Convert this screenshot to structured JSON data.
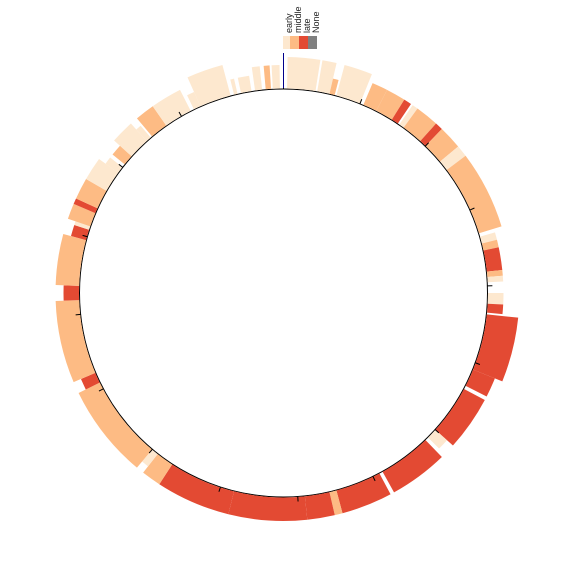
{
  "legend": {
    "entries": [
      {
        "label": "early",
        "color": "#fde8cf"
      },
      {
        "label": "middle",
        "color": "#fdbb84"
      },
      {
        "label": "late",
        "color": "#e34a33"
      },
      {
        "label": "None",
        "color": "#808080"
      }
    ]
  },
  "colors": {
    "early": "#fde8cf",
    "middle": "#fdbb84",
    "late": "#e34a33",
    "axis": "#000000",
    "origin_marker": "#00008b"
  },
  "chart_data": {
    "type": "circular-track",
    "angle_unit": "degrees_clockwise_from_top",
    "ticks_deg": [
      0,
      22,
      44,
      66,
      88,
      110,
      132,
      154,
      176,
      198,
      220,
      242,
      264,
      286,
      308,
      330
    ],
    "segments": [
      {
        "start": 1,
        "end": 9,
        "cls": "early",
        "level": "long"
      },
      {
        "start": 9.5,
        "end": 13,
        "cls": "early",
        "level": "long"
      },
      {
        "start": 13,
        "end": 14.5,
        "cls": "middle",
        "level": "short"
      },
      {
        "start": 15,
        "end": 22,
        "cls": "early",
        "level": "long"
      },
      {
        "start": 23,
        "end": 27,
        "cls": "middle",
        "level": "mid"
      },
      {
        "start": 27,
        "end": 32,
        "cls": "middle",
        "level": "mid"
      },
      {
        "start": 32,
        "end": 34,
        "cls": "late",
        "level": "mid"
      },
      {
        "start": 34.5,
        "end": 36,
        "cls": "early",
        "level": "mid"
      },
      {
        "start": 36,
        "end": 42,
        "cls": "middle",
        "level": "mid"
      },
      {
        "start": 42,
        "end": 44,
        "cls": "late",
        "level": "mid"
      },
      {
        "start": 44,
        "end": 50,
        "cls": "middle",
        "level": "mid"
      },
      {
        "start": 50,
        "end": 53,
        "cls": "early",
        "level": "mid"
      },
      {
        "start": 53,
        "end": 73,
        "cls": "middle",
        "level": "mid"
      },
      {
        "start": 74,
        "end": 76,
        "cls": "early",
        "level": "short"
      },
      {
        "start": 76,
        "end": 78,
        "cls": "middle",
        "level": "short"
      },
      {
        "start": 78,
        "end": 84,
        "cls": "late",
        "level": "short"
      },
      {
        "start": 84,
        "end": 85.5,
        "cls": "middle",
        "level": "short"
      },
      {
        "start": 85.5,
        "end": 87,
        "cls": "early",
        "level": "short"
      },
      {
        "start": 90,
        "end": 93,
        "cls": "early",
        "level": "short"
      },
      {
        "start": 93,
        "end": 95.5,
        "cls": "late",
        "level": "short"
      },
      {
        "start": 96,
        "end": 112,
        "cls": "late",
        "level": "long"
      },
      {
        "start": 112,
        "end": 117,
        "cls": "late",
        "level": "mid"
      },
      {
        "start": 118,
        "end": 132,
        "cls": "late",
        "level": "mid"
      },
      {
        "start": 132,
        "end": 135,
        "cls": "early",
        "level": "short"
      },
      {
        "start": 136,
        "end": 151,
        "cls": "late",
        "level": "mid"
      },
      {
        "start": 152,
        "end": 165,
        "cls": "late",
        "level": "mid"
      },
      {
        "start": 165,
        "end": 167,
        "cls": "middle",
        "level": "mid"
      },
      {
        "start": 167,
        "end": 174,
        "cls": "late",
        "level": "mid"
      },
      {
        "start": 174,
        "end": 194,
        "cls": "late",
        "level": "mid"
      },
      {
        "start": 194,
        "end": 213,
        "cls": "late",
        "level": "mid"
      },
      {
        "start": 213,
        "end": 218,
        "cls": "middle",
        "level": "mid"
      },
      {
        "start": 218,
        "end": 220,
        "cls": "early",
        "level": "short"
      },
      {
        "start": 220,
        "end": 244,
        "cls": "middle",
        "level": "mid"
      },
      {
        "start": 244,
        "end": 247,
        "cls": "late",
        "level": "short"
      },
      {
        "start": 247,
        "end": 268,
        "cls": "middle",
        "level": "mid"
      },
      {
        "start": 268,
        "end": 272,
        "cls": "late",
        "level": "short"
      },
      {
        "start": 272,
        "end": 285,
        "cls": "middle",
        "level": "mid"
      },
      {
        "start": 285,
        "end": 288,
        "cls": "late",
        "level": "short"
      },
      {
        "start": 288,
        "end": 289,
        "cls": "early",
        "level": "short"
      },
      {
        "start": 289,
        "end": 293,
        "cls": "middle",
        "level": "mid"
      },
      {
        "start": 293,
        "end": 294.5,
        "cls": "late",
        "level": "mid"
      },
      {
        "start": 294.5,
        "end": 300,
        "cls": "middle",
        "level": "mid"
      },
      {
        "start": 300,
        "end": 306,
        "cls": "early",
        "level": "mid"
      },
      {
        "start": 306,
        "end": 308,
        "cls": "early",
        "level": "short"
      },
      {
        "start": 309,
        "end": 312,
        "cls": "middle",
        "level": "short"
      },
      {
        "start": 312,
        "end": 318,
        "cls": "early",
        "level": "mid"
      },
      {
        "start": 318,
        "end": 319.5,
        "cls": "early",
        "level": "short"
      },
      {
        "start": 320,
        "end": 325,
        "cls": "middle",
        "level": "mid"
      },
      {
        "start": 325,
        "end": 333,
        "cls": "early",
        "level": "mid"
      },
      {
        "start": 334,
        "end": 336,
        "cls": "early",
        "level": "short"
      },
      {
        "start": 336,
        "end": 345,
        "cls": "early",
        "level": "long"
      },
      {
        "start": 346,
        "end": 347,
        "cls": "early",
        "level": "short"
      },
      {
        "start": 348,
        "end": 351,
        "cls": "early",
        "level": "short"
      },
      {
        "start": 352,
        "end": 354,
        "cls": "early",
        "level": "mid"
      },
      {
        "start": 355,
        "end": 356.5,
        "cls": "middle",
        "level": "mid"
      },
      {
        "start": 357,
        "end": 359,
        "cls": "early",
        "level": "mid"
      }
    ]
  }
}
